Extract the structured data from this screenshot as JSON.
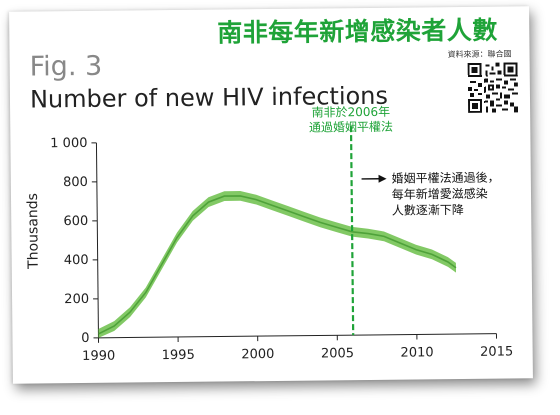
{
  "header": {
    "headline": "南非每年新增感染者人數",
    "source": "資料來源：聯合國"
  },
  "figure": {
    "label": "Fig. 3"
  },
  "chart_data": {
    "type": "line",
    "title": "Number of new HIV infections",
    "ylabel": "Thousands",
    "xlabel": "",
    "xlim": [
      1990,
      2015
    ],
    "ylim": [
      0,
      1000
    ],
    "x_ticks": [
      "1990",
      "1995",
      "2000",
      "2005",
      "2010",
      "2015"
    ],
    "y_ticks": [
      "0",
      "200",
      "400",
      "600",
      "800",
      "1 000"
    ],
    "grid": false,
    "series": [
      {
        "x": [
          1990,
          1991,
          1992,
          1993,
          1994,
          1995,
          1996,
          1997,
          1998,
          1999,
          2000,
          2001,
          2002,
          2003,
          2004,
          2005,
          2006,
          2007,
          2008,
          2009,
          2010,
          2011,
          2012,
          2012.5
        ],
        "y": [
          20,
          60,
          130,
          230,
          370,
          510,
          620,
          690,
          720,
          720,
          700,
          670,
          640,
          610,
          580,
          555,
          530,
          520,
          505,
          470,
          435,
          410,
          370,
          340
        ],
        "band": 25,
        "color": "#6cc04a"
      }
    ],
    "annotations": [
      {
        "x": 2006,
        "type": "vline",
        "style": "dashed",
        "color": "#1fa338",
        "text": [
          "南非於2006年",
          "通過婚姻平權法"
        ]
      },
      {
        "x": 2006,
        "y": 780,
        "type": "arrow-text",
        "text": [
          "婚姻平權法通過後，",
          "每年新增愛滋感染",
          "人數逐漸下降"
        ]
      }
    ]
  }
}
